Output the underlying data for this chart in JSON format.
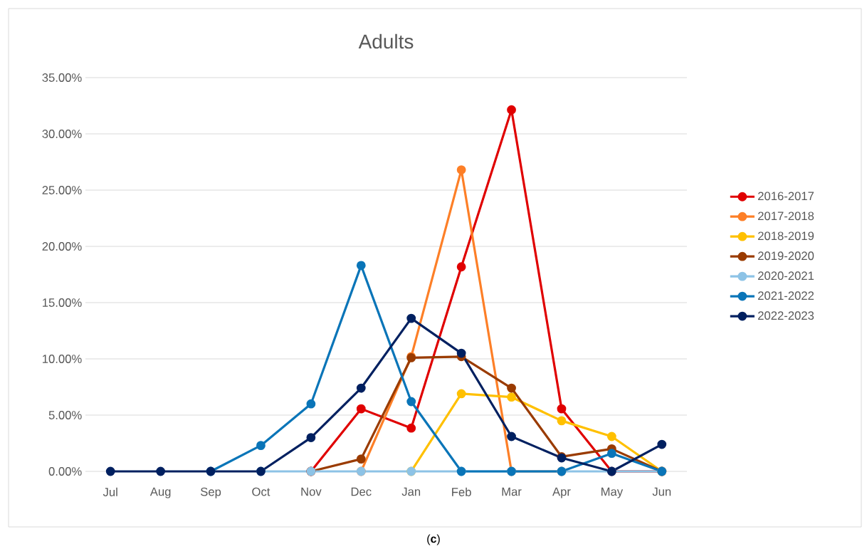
{
  "chart_data": {
    "type": "line",
    "title": "Adults",
    "categories": [
      "Jul",
      "Aug",
      "Sep",
      "Oct",
      "Nov",
      "Dec",
      "Jan",
      "Feb",
      "Mar",
      "Apr",
      "May",
      "Jun"
    ],
    "series": [
      {
        "name": "2016-2017",
        "color": "#e00000",
        "values": [
          null,
          null,
          null,
          null,
          0,
          5.56,
          3.85,
          18.18,
          32.14,
          5.56,
          0,
          0
        ]
      },
      {
        "name": "2017-2018",
        "color": "#fd7f27",
        "values": [
          null,
          null,
          null,
          null,
          null,
          0,
          10.2,
          26.8,
          0,
          0,
          null,
          null
        ]
      },
      {
        "name": "2018-2019",
        "color": "#ffc000",
        "values": [
          null,
          null,
          null,
          null,
          null,
          null,
          0,
          6.9,
          6.6,
          4.5,
          3.1,
          0
        ]
      },
      {
        "name": "2019-2020",
        "color": "#9a3b00",
        "values": [
          null,
          null,
          null,
          null,
          0,
          1.1,
          10.1,
          10.2,
          7.4,
          1.3,
          2.0,
          0
        ]
      },
      {
        "name": "2020-2021",
        "color": "#8dc3e6",
        "values": [
          null,
          null,
          null,
          0,
          0,
          0,
          0,
          0,
          0,
          0,
          0,
          0
        ]
      },
      {
        "name": "2021-2022",
        "color": "#0a75b8",
        "values": [
          null,
          null,
          0,
          2.3,
          6.0,
          18.3,
          6.2,
          0,
          0,
          0,
          1.6,
          0
        ]
      },
      {
        "name": "2022-2023",
        "color": "#002060",
        "values": [
          0,
          0,
          0,
          0,
          3.0,
          7.4,
          13.6,
          10.5,
          3.1,
          1.2,
          0,
          2.4
        ]
      }
    ],
    "ylim": [
      0,
      35
    ],
    "yticks": [
      {
        "value": 0,
        "label": "0.00%"
      },
      {
        "value": 5,
        "label": "5.00%"
      },
      {
        "value": 10,
        "label": "10.00%"
      },
      {
        "value": 15,
        "label": "15.00%"
      },
      {
        "value": 20,
        "label": "20.00%"
      },
      {
        "value": 25,
        "label": "25.00%"
      },
      {
        "value": 30,
        "label": "30.00%"
      },
      {
        "value": 35,
        "label": "35.00%"
      }
    ],
    "grid": "y",
    "legend": "right",
    "marker": "circle",
    "line_style": "solid",
    "annotations": [
      "(**c**)"
    ]
  }
}
